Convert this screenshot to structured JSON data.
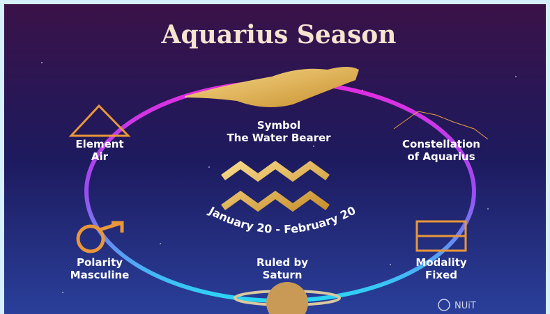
{
  "title": "Aquarius Season",
  "symbol": {
    "label": "Symbol",
    "value": "The Water Bearer"
  },
  "element": {
    "label": "Element",
    "value": "Air"
  },
  "constellation": {
    "label": "Constellation",
    "value": "of Aquarius"
  },
  "polarity": {
    "label": "Polarity",
    "value": "Masculine"
  },
  "ruler": {
    "label": "Ruled by",
    "value": "Saturn"
  },
  "modality": {
    "label": "Modality",
    "value": "Fixed"
  },
  "dates": "January 20 - February 20",
  "brand": "NUiT"
}
